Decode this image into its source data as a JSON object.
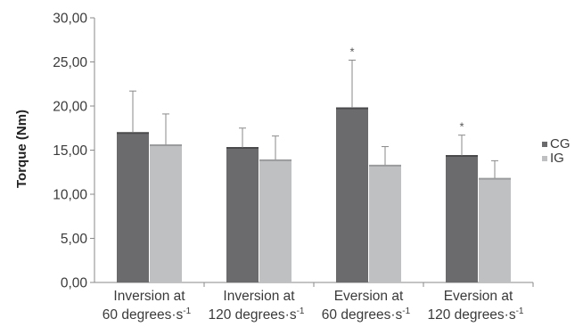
{
  "chart_data": {
    "type": "bar",
    "ylabel": "Torque (Nm)",
    "ylim": [
      0,
      30
    ],
    "y_ticks": [
      "0,00",
      "5,00",
      "10,00",
      "15,00",
      "20,00",
      "25,00",
      "30,00"
    ],
    "categories": [
      {
        "line1": "Inversion at",
        "line2": "60 degrees·s",
        "sup": "-1"
      },
      {
        "line1": "Inversion at",
        "line2": "120 degrees·s",
        "sup": "-1"
      },
      {
        "line1": "Eversion at",
        "line2": "60 degrees·s",
        "sup": "-1"
      },
      {
        "line1": "Eversion at",
        "line2": "120 degrees·s",
        "sup": "-1"
      }
    ],
    "series": [
      {
        "name": "CG",
        "color": "#6b6b6d",
        "values": [
          17.0,
          15.3,
          19.8,
          14.4
        ],
        "errors": [
          4.7,
          2.2,
          5.4,
          2.3
        ]
      },
      {
        "name": "IG",
        "color": "#bfc0c2",
        "values": [
          15.6,
          13.9,
          13.3,
          11.8
        ],
        "errors": [
          3.5,
          2.7,
          2.1,
          2.0
        ]
      }
    ],
    "annotations": [
      {
        "category_index": 2,
        "series_index": 0,
        "text": "*"
      },
      {
        "category_index": 3,
        "series_index": 0,
        "text": "*"
      }
    ],
    "legend_position": "right",
    "grid": false
  }
}
